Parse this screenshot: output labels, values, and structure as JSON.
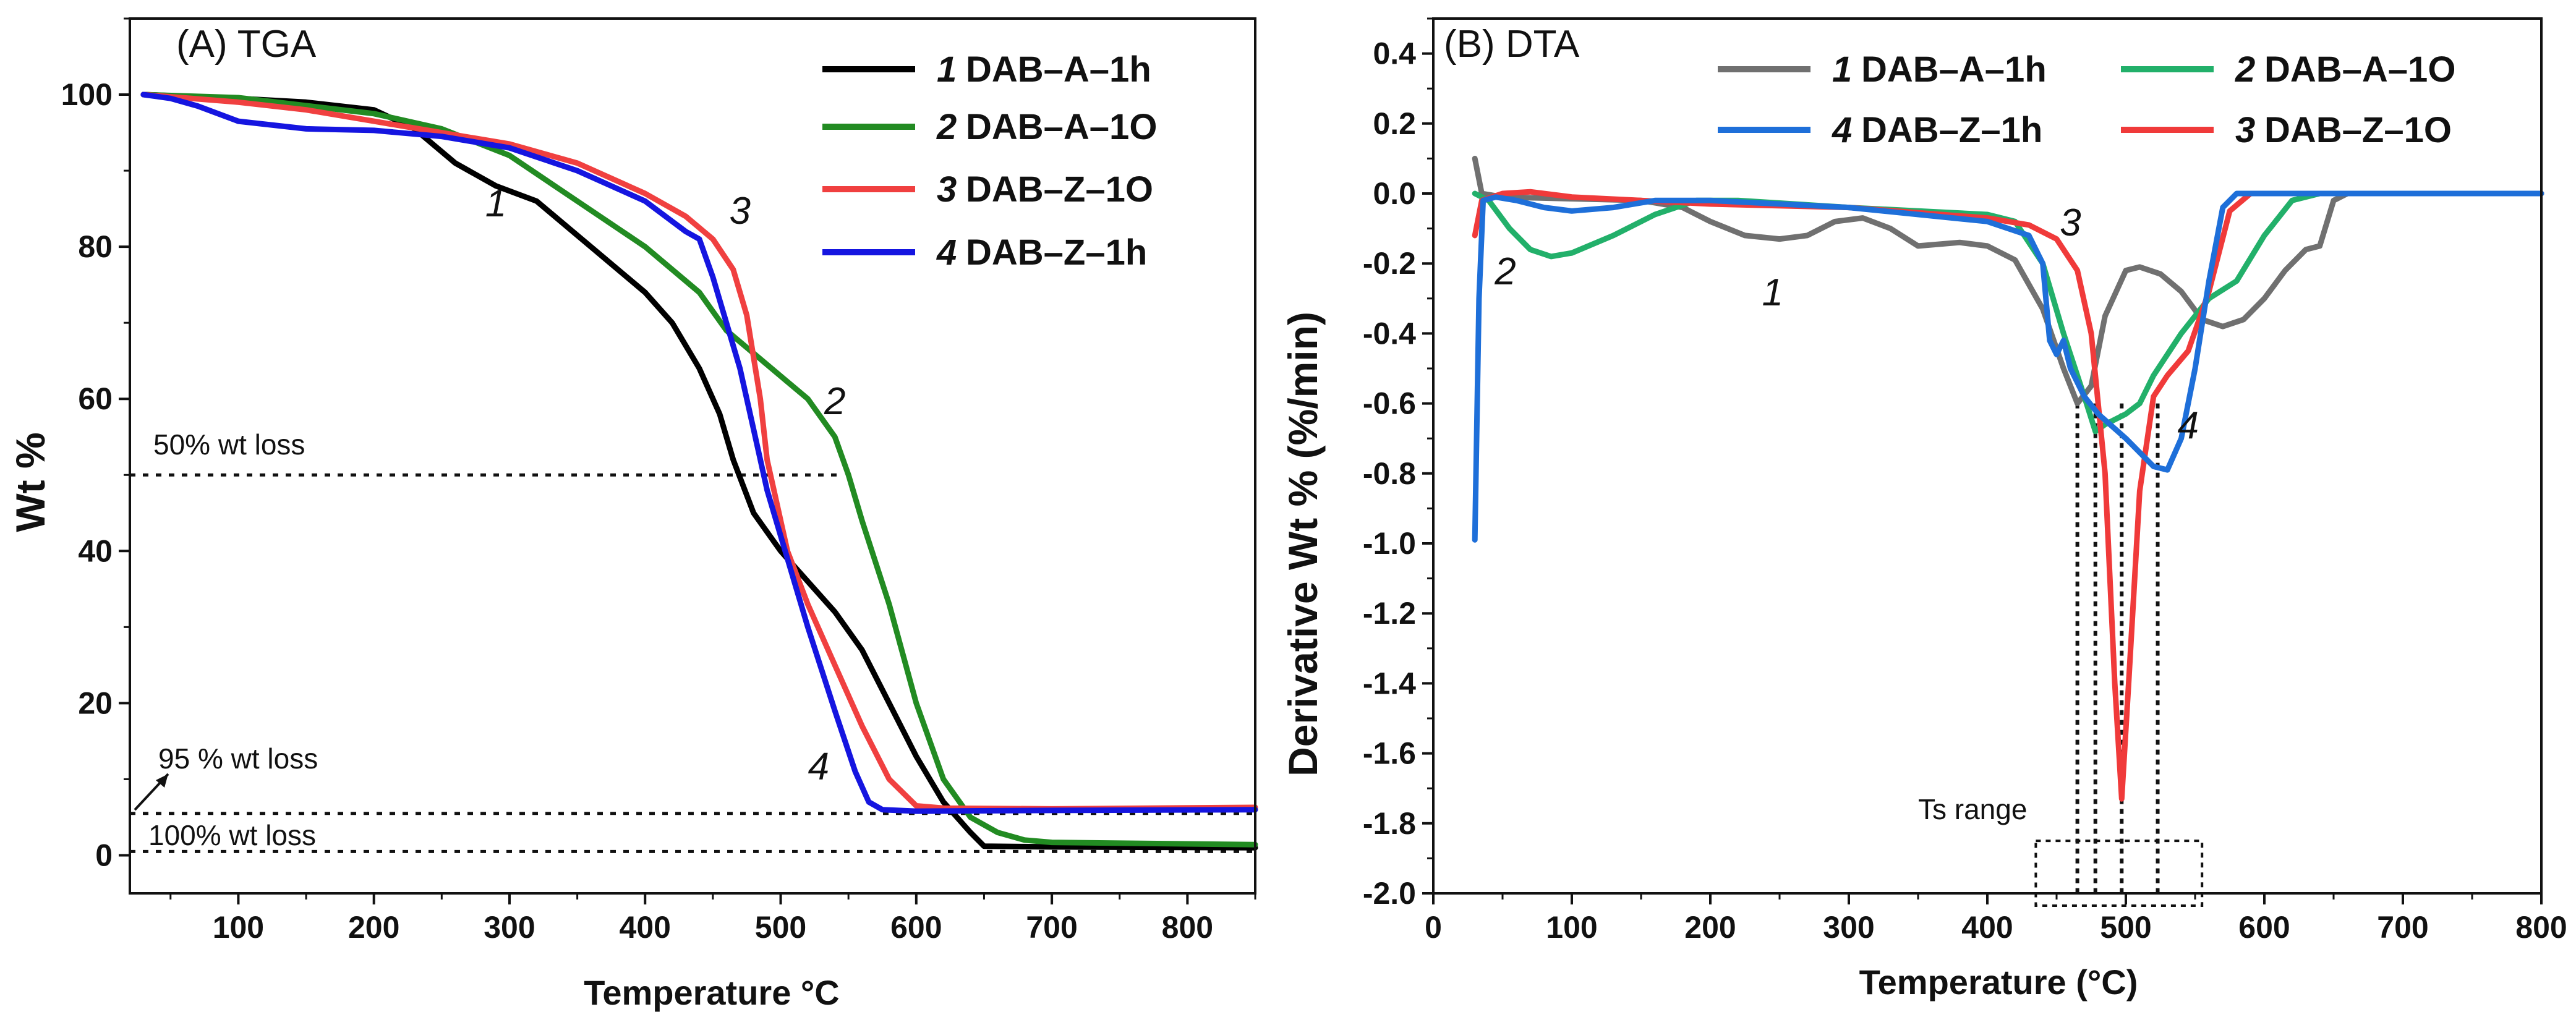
{
  "chart_data": [
    {
      "panel": "A",
      "type": "line",
      "title": "(A) TGA",
      "xlabel": "Temperature °C",
      "ylabel": "Wt %",
      "xlim": [
        20,
        850
      ],
      "ylim": [
        -5,
        110
      ],
      "xticks": [
        100,
        200,
        300,
        400,
        500,
        600,
        700,
        800
      ],
      "yticks": [
        0,
        20,
        40,
        60,
        80,
        100
      ],
      "series": [
        {
          "num": "1",
          "name": "DAB–A–1h",
          "color": "#000000",
          "points": [
            [
              30,
              100
            ],
            [
              100,
              99.5
            ],
            [
              150,
              99
            ],
            [
              200,
              98
            ],
            [
              230,
              95.5
            ],
            [
              260,
              91
            ],
            [
              290,
              88
            ],
            [
              320,
              86
            ],
            [
              360,
              80
            ],
            [
              400,
              74
            ],
            [
              420,
              70
            ],
            [
              440,
              64
            ],
            [
              455,
              58
            ],
            [
              465,
              52
            ],
            [
              480,
              45
            ],
            [
              500,
              40
            ],
            [
              540,
              32
            ],
            [
              560,
              27
            ],
            [
              580,
              20
            ],
            [
              600,
              13
            ],
            [
              620,
              7
            ],
            [
              640,
              3
            ],
            [
              650,
              1.2
            ],
            [
              700,
              1.1
            ],
            [
              850,
              1.0
            ]
          ]
        },
        {
          "num": "2",
          "name": "DAB–A–1O",
          "color": "#228B22",
          "points": [
            [
              30,
              100
            ],
            [
              100,
              99.6
            ],
            [
              200,
              97.5
            ],
            [
              250,
              95.5
            ],
            [
              300,
              92
            ],
            [
              350,
              86
            ],
            [
              400,
              80
            ],
            [
              440,
              74
            ],
            [
              460,
              69
            ],
            [
              480,
              66
            ],
            [
              500,
              63
            ],
            [
              520,
              60
            ],
            [
              540,
              55
            ],
            [
              550,
              50
            ],
            [
              560,
              44
            ],
            [
              580,
              33
            ],
            [
              600,
              20
            ],
            [
              620,
              10
            ],
            [
              640,
              5
            ],
            [
              660,
              3
            ],
            [
              680,
              2
            ],
            [
              700,
              1.7
            ],
            [
              850,
              1.4
            ]
          ]
        },
        {
          "num": "3",
          "name": "DAB–Z–1O",
          "color": "#F04040",
          "points": [
            [
              30,
              100
            ],
            [
              100,
              99
            ],
            [
              150,
              98
            ],
            [
              200,
              96.5
            ],
            [
              250,
              95
            ],
            [
              300,
              93.5
            ],
            [
              350,
              91
            ],
            [
              400,
              87
            ],
            [
              430,
              84
            ],
            [
              450,
              81
            ],
            [
              465,
              77
            ],
            [
              475,
              71
            ],
            [
              485,
              60
            ],
            [
              490,
              52
            ],
            [
              495,
              48
            ],
            [
              505,
              40
            ],
            [
              520,
              33
            ],
            [
              540,
              25
            ],
            [
              560,
              17
            ],
            [
              580,
              10
            ],
            [
              600,
              6.5
            ],
            [
              620,
              6.2
            ],
            [
              700,
              6.1
            ],
            [
              850,
              6.3
            ]
          ]
        },
        {
          "num": "4",
          "name": "DAB–Z–1h",
          "color": "#1515E0",
          "points": [
            [
              30,
              100
            ],
            [
              50,
              99.5
            ],
            [
              70,
              98.5
            ],
            [
              100,
              96.5
            ],
            [
              150,
              95.5
            ],
            [
              200,
              95.3
            ],
            [
              250,
              94.5
            ],
            [
              300,
              93
            ],
            [
              350,
              90
            ],
            [
              400,
              86
            ],
            [
              430,
              82
            ],
            [
              440,
              81
            ],
            [
              450,
              76
            ],
            [
              460,
              70
            ],
            [
              470,
              64
            ],
            [
              480,
              56
            ],
            [
              490,
              48
            ],
            [
              500,
              42
            ],
            [
              520,
              30
            ],
            [
              540,
              19
            ],
            [
              555,
              11
            ],
            [
              565,
              7
            ],
            [
              575,
              6
            ],
            [
              600,
              5.8
            ],
            [
              700,
              5.9
            ],
            [
              850,
              6.0
            ]
          ]
        }
      ],
      "annotations": [
        {
          "text": "50% wt loss",
          "x": 30,
          "y": 53.5,
          "line_y": 50,
          "line_x": [
            20,
            545
          ]
        },
        {
          "text": "95 % wt loss",
          "x": 60,
          "y": 11,
          "line_y": 5.5,
          "line_x": [
            20,
            850
          ]
        },
        {
          "text": "100% wt loss",
          "x": 33,
          "y": 2.2,
          "line_y": 0.5,
          "line_x": [
            20,
            850
          ]
        }
      ],
      "curve_labels": [
        {
          "text": "1",
          "x": 290,
          "y": 84
        },
        {
          "text": "2",
          "x": 540,
          "y": 58
        },
        {
          "text": "3",
          "x": 470,
          "y": 83
        },
        {
          "text": "4",
          "x": 528,
          "y": 10
        }
      ]
    },
    {
      "panel": "B",
      "type": "line",
      "title": "(B) DTA",
      "xlabel": "Temperature (°C)",
      "ylabel": "Derivative Wt % (%/min)",
      "xlim": [
        0,
        800
      ],
      "ylim": [
        -2.0,
        0.5
      ],
      "xticks": [
        0,
        100,
        200,
        300,
        400,
        500,
        600,
        700,
        800
      ],
      "yticks": [
        -2.0,
        -1.8,
        -1.6,
        -1.4,
        -1.2,
        -1.0,
        -0.8,
        -0.6,
        -0.4,
        -0.2,
        0.0,
        0.2,
        0.4
      ],
      "series": [
        {
          "num": "1",
          "name": "DAB–A–1h",
          "color": "#707070",
          "points": [
            [
              30,
              0.1
            ],
            [
              35,
              0
            ],
            [
              50,
              -0.01
            ],
            [
              100,
              -0.015
            ],
            [
              150,
              -0.02
            ],
            [
              180,
              -0.04
            ],
            [
              200,
              -0.08
            ],
            [
              225,
              -0.12
            ],
            [
              250,
              -0.13
            ],
            [
              270,
              -0.12
            ],
            [
              290,
              -0.08
            ],
            [
              310,
              -0.07
            ],
            [
              330,
              -0.1
            ],
            [
              350,
              -0.15
            ],
            [
              380,
              -0.14
            ],
            [
              400,
              -0.15
            ],
            [
              420,
              -0.19
            ],
            [
              440,
              -0.33
            ],
            [
              455,
              -0.5
            ],
            [
              465,
              -0.6
            ],
            [
              475,
              -0.55
            ],
            [
              485,
              -0.35
            ],
            [
              500,
              -0.22
            ],
            [
              510,
              -0.21
            ],
            [
              525,
              -0.23
            ],
            [
              540,
              -0.28
            ],
            [
              555,
              -0.36
            ],
            [
              570,
              -0.38
            ],
            [
              585,
              -0.36
            ],
            [
              600,
              -0.3
            ],
            [
              615,
              -0.22
            ],
            [
              630,
              -0.16
            ],
            [
              640,
              -0.15
            ],
            [
              650,
              -0.02
            ],
            [
              660,
              0
            ],
            [
              800,
              0
            ]
          ]
        },
        {
          "num": "2",
          "name": "DAB–A–1O",
          "color": "#22B06A",
          "points": [
            [
              30,
              0
            ],
            [
              40,
              -0.02
            ],
            [
              55,
              -0.1
            ],
            [
              70,
              -0.16
            ],
            [
              85,
              -0.18
            ],
            [
              100,
              -0.17
            ],
            [
              130,
              -0.12
            ],
            [
              160,
              -0.06
            ],
            [
              190,
              -0.02
            ],
            [
              220,
              -0.02
            ],
            [
              300,
              -0.04
            ],
            [
              400,
              -0.06
            ],
            [
              420,
              -0.08
            ],
            [
              440,
              -0.2
            ],
            [
              455,
              -0.4
            ],
            [
              470,
              -0.58
            ],
            [
              478,
              -0.68
            ],
            [
              485,
              -0.66
            ],
            [
              500,
              -0.63
            ],
            [
              510,
              -0.6
            ],
            [
              520,
              -0.52
            ],
            [
              540,
              -0.4
            ],
            [
              560,
              -0.3
            ],
            [
              580,
              -0.25
            ],
            [
              600,
              -0.12
            ],
            [
              620,
              -0.02
            ],
            [
              640,
              0
            ],
            [
              800,
              0
            ]
          ]
        },
        {
          "num": "3",
          "name": "DAB–Z–1O",
          "color": "#F03A3A",
          "points": [
            [
              30,
              -0.12
            ],
            [
              35,
              -0.02
            ],
            [
              50,
              0
            ],
            [
              70,
              0.005
            ],
            [
              100,
              -0.01
            ],
            [
              150,
              -0.02
            ],
            [
              200,
              -0.03
            ],
            [
              300,
              -0.04
            ],
            [
              400,
              -0.07
            ],
            [
              430,
              -0.09
            ],
            [
              450,
              -0.13
            ],
            [
              465,
              -0.22
            ],
            [
              475,
              -0.4
            ],
            [
              485,
              -0.8
            ],
            [
              492,
              -1.4
            ],
            [
              497,
              -1.73
            ],
            [
              502,
              -1.4
            ],
            [
              510,
              -0.85
            ],
            [
              520,
              -0.58
            ],
            [
              530,
              -0.52
            ],
            [
              545,
              -0.45
            ],
            [
              560,
              -0.28
            ],
            [
              575,
              -0.05
            ],
            [
              590,
              0
            ],
            [
              800,
              0
            ]
          ]
        },
        {
          "num": "4",
          "name": "DAB–Z–1h",
          "color": "#1E6FD9",
          "points": [
            [
              30,
              -0.99
            ],
            [
              33,
              -0.3
            ],
            [
              36,
              -0.02
            ],
            [
              45,
              -0.01
            ],
            [
              60,
              -0.02
            ],
            [
              80,
              -0.04
            ],
            [
              100,
              -0.05
            ],
            [
              130,
              -0.04
            ],
            [
              160,
              -0.02
            ],
            [
              200,
              -0.02
            ],
            [
              300,
              -0.04
            ],
            [
              400,
              -0.08
            ],
            [
              430,
              -0.12
            ],
            [
              440,
              -0.2
            ],
            [
              445,
              -0.42
            ],
            [
              450,
              -0.46
            ],
            [
              455,
              -0.42
            ],
            [
              460,
              -0.5
            ],
            [
              470,
              -0.58
            ],
            [
              480,
              -0.63
            ],
            [
              500,
              -0.7
            ],
            [
              520,
              -0.78
            ],
            [
              530,
              -0.79
            ],
            [
              540,
              -0.7
            ],
            [
              550,
              -0.5
            ],
            [
              560,
              -0.25
            ],
            [
              570,
              -0.04
            ],
            [
              580,
              0
            ],
            [
              800,
              0
            ]
          ]
        }
      ],
      "annotations": [
        {
          "text": "Ts range",
          "x": 355,
          "y": -1.78
        }
      ],
      "ts_box": {
        "x": [
          435,
          555
        ],
        "y": [
          -1.85,
          -2.05
        ]
      },
      "dotted_verticals": [
        465,
        478,
        497,
        523
      ],
      "curve_labels": [
        {
          "text": "1",
          "x": 245,
          "y": -0.32
        },
        {
          "text": "2",
          "x": 52,
          "y": -0.26
        },
        {
          "text": "3",
          "x": 460,
          "y": -0.12
        },
        {
          "text": "4",
          "x": 545,
          "y": -0.7
        }
      ]
    }
  ]
}
